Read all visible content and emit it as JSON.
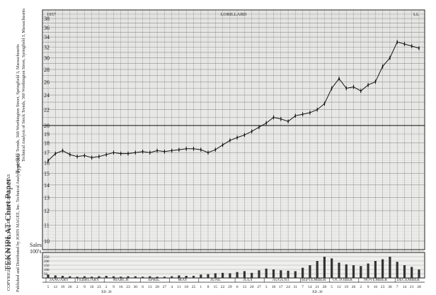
{
  "page": {
    "copyright": "COPYRIGHT 1961 BY JOHN MAGEE, SPRINGFIELD, MAS",
    "type_label": "Type RU",
    "address": "Technical Analysis of Stock Trends, 360 Worthington Street, Springfield 3, Massachusetts",
    "brand": "TEKNIPLAT Chart Paper",
    "published": "Published and Distributed by JOHN MAGEE, Inc. Technical Analysis of Stock Trends, 360 Worthington Street, Springfield 3, Massachusetts"
  },
  "chart_data": {
    "type": "line",
    "title": "LORILLARD",
    "year_label": "1957",
    "symbol_label": "LL",
    "y_scale": "log",
    "ylim": [
      9.5,
      40
    ],
    "ytick_labels": [
      "38",
      "36",
      "34",
      "32",
      "30",
      "28",
      "26",
      "24",
      "22",
      "20",
      "19",
      "18",
      "17",
      "16",
      "15",
      "14",
      "13",
      "12",
      "11",
      "10"
    ],
    "ytick_values": [
      38,
      36,
      34,
      32,
      30,
      28,
      26,
      24,
      22,
      20,
      19,
      18,
      17,
      16,
      15,
      14,
      13,
      12,
      11,
      10
    ],
    "volume_label_top": "Sales",
    "volume_label_bottom": "100's",
    "volume_ytick_labels": [
      "250",
      "200",
      "150",
      "100",
      "50"
    ],
    "volume_ytick_values": [
      250,
      200,
      150,
      100,
      50
    ],
    "volume_ylim": [
      0,
      300
    ],
    "months": [
      "JANUARY",
      "FEBRUARY",
      "MARCH",
      "APRIL",
      "MAY",
      "JUNE",
      "JULY",
      "AUGUST",
      "SEPTEMBER",
      "OCTOBER",
      "NOVEMBER",
      "DECEMBER"
    ],
    "week_day_labels": [
      "5",
      "12",
      "19",
      "26",
      "2",
      "9",
      "16",
      "23",
      "2",
      "9",
      "16",
      "23",
      "30",
      "6",
      "13",
      "20",
      "27",
      "4",
      "11",
      "18",
      "25",
      "1",
      "8",
      "15",
      "22",
      "29",
      "6",
      "13",
      "20",
      "27",
      "3",
      "10",
      "17",
      "24",
      "31",
      "7",
      "14",
      "21",
      "28",
      "5",
      "12",
      "19",
      "26",
      "2",
      "9",
      "16",
      "23",
      "30",
      "7",
      "14",
      "21",
      "28"
    ],
    "bottom_note_1": "XD .30",
    "bottom_note_2": "XD .30",
    "grid": true,
    "x": [
      "Jan 5",
      "Jan 12",
      "Jan 19",
      "Jan 26",
      "Feb 2",
      "Feb 9",
      "Feb 16",
      "Feb 23",
      "Mar 2",
      "Mar 9",
      "Mar 16",
      "Mar 23",
      "Mar 30",
      "Apr 6",
      "Apr 13",
      "Apr 20",
      "Apr 27",
      "May 4",
      "May 11",
      "May 18",
      "May 25",
      "Jun 1",
      "Jun 8",
      "Jun 15",
      "Jun 22",
      "Jun 29",
      "Jul 6",
      "Jul 13",
      "Jul 20",
      "Jul 27",
      "Aug 3",
      "Aug 10",
      "Aug 17",
      "Aug 24",
      "Aug 31",
      "Sep 7",
      "Sep 14",
      "Sep 21",
      "Sep 28",
      "Oct 5",
      "Oct 12",
      "Oct 19",
      "Oct 26",
      "Nov 2",
      "Nov 9",
      "Nov 16",
      "Nov 23",
      "Nov 30",
      "Dec 7",
      "Dec 14",
      "Dec 21",
      "Dec 28"
    ],
    "series": [
      {
        "values": [
          16.2,
          16.9,
          17.2,
          16.8,
          16.6,
          16.7,
          16.5,
          16.6,
          16.8,
          17.0,
          16.9,
          16.9,
          17.0,
          17.1,
          17.0,
          17.2,
          17.1,
          17.2,
          17.3,
          17.4,
          17.4,
          17.3,
          17.0,
          17.3,
          17.8,
          18.3,
          18.6,
          18.9,
          19.3,
          19.8,
          20.3,
          21.0,
          20.8,
          20.5,
          21.2,
          21.4,
          21.6,
          22.0,
          22.8,
          25.0,
          26.5,
          25.0,
          25.2,
          24.6,
          25.5,
          26.0,
          28.5,
          30.0,
          33.0,
          32.6,
          32.2,
          31.8
        ]
      }
    ],
    "volume": [
      40,
      30,
      25,
      20,
      15,
      20,
      15,
      20,
      25,
      20,
      15,
      20,
      20,
      15,
      20,
      15,
      15,
      20,
      30,
      25,
      25,
      40,
      45,
      55,
      60,
      55,
      70,
      80,
      60,
      90,
      110,
      100,
      90,
      85,
      80,
      120,
      150,
      200,
      250,
      230,
      180,
      160,
      150,
      140,
      170,
      200,
      220,
      250,
      190,
      150,
      130,
      100
    ]
  }
}
